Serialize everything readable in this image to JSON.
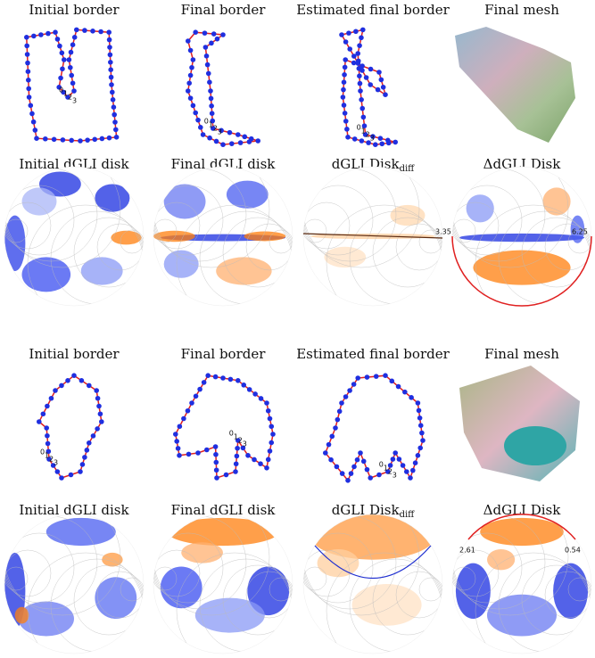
{
  "blocks": [
    {
      "border_titles": [
        "Initial border",
        "Final border",
        "Estimated final border",
        "Final mesh"
      ],
      "disk_titles": [
        "Initial dGLI disk",
        "Final dGLI disk",
        {
          "text": "dGLI Disk",
          "subscript": "diff"
        },
        "ΔdGLI Disk"
      ],
      "point_labels": [
        "0",
        "1",
        "2",
        "3"
      ],
      "disk_annotations": [
        "3.35",
        "6.25"
      ]
    },
    {
      "border_titles": [
        "Initial border",
        "Final border",
        "Estimated final border",
        "Final mesh"
      ],
      "disk_titles": [
        "Initial dGLI disk",
        "Final dGLI disk",
        {
          "text": "dGLI Disk",
          "subscript": "diff"
        },
        "ΔdGLI Disk"
      ],
      "point_labels": [
        "0",
        "1",
        "2",
        "3"
      ],
      "disk_annotations": [
        "2.61",
        "0.54"
      ]
    }
  ]
}
